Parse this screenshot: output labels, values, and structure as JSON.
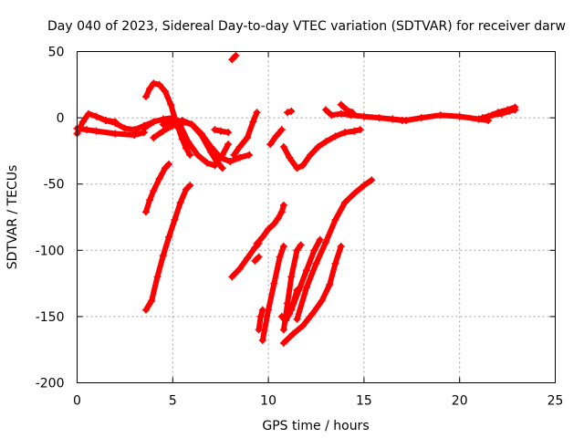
{
  "chart_data": {
    "type": "scatter",
    "title": "Day 040 of 2023, Sidereal Day-to-day VTEC variation (SDTVAR) for receiver darw",
    "xlabel": "GPS time / hours",
    "ylabel": "SDTVAR / TECUs",
    "xlim": [
      0,
      25
    ],
    "ylim": [
      -200,
      50
    ],
    "xticks": [
      "0",
      "5",
      "10",
      "15",
      "20",
      "25"
    ],
    "yticks": [
      "50",
      "0",
      "-50",
      "-100",
      "-150",
      "-200"
    ],
    "grid": true,
    "marker": "plus",
    "color": "#ff0000",
    "series": [
      {
        "points": [
          [
            0,
            -12
          ],
          [
            0.3,
            -3
          ],
          [
            0.6,
            3
          ],
          [
            1.0,
            1
          ],
          [
            1.5,
            -2
          ],
          [
            2.0,
            -3
          ]
        ]
      },
      {
        "points": [
          [
            0,
            -8
          ],
          [
            0.5,
            -9
          ],
          [
            1.0,
            -10
          ],
          [
            2.0,
            -12
          ],
          [
            3.0,
            -13
          ],
          [
            3.5,
            -11
          ]
        ]
      },
      {
        "points": [
          [
            1.5,
            -2
          ],
          [
            2.0,
            -4
          ],
          [
            2.5,
            -8
          ],
          [
            3.0,
            -9
          ],
          [
            3.5,
            -6
          ],
          [
            4.0,
            -3
          ]
        ]
      },
      {
        "points": [
          [
            3.6,
            -71
          ],
          [
            3.8,
            -62
          ],
          [
            4.0,
            -55
          ],
          [
            4.3,
            -46
          ],
          [
            4.6,
            -38
          ],
          [
            4.8,
            -35
          ]
        ]
      },
      {
        "points": [
          [
            3.6,
            -145
          ],
          [
            3.9,
            -138
          ],
          [
            4.2,
            -120
          ],
          [
            4.5,
            -104
          ],
          [
            4.8,
            -90
          ],
          [
            5.1,
            -77
          ],
          [
            5.4,
            -64
          ],
          [
            5.7,
            -54
          ],
          [
            5.9,
            -51
          ]
        ]
      },
      {
        "points": [
          [
            3.5,
            -8
          ],
          [
            4.0,
            -3
          ],
          [
            4.5,
            -1
          ],
          [
            5.0,
            0
          ],
          [
            5.4,
            -6
          ],
          [
            5.8,
            -18
          ],
          [
            6.3,
            -28
          ],
          [
            6.8,
            -34
          ],
          [
            7.2,
            -36
          ],
          [
            7.6,
            -28
          ],
          [
            7.9,
            -20
          ]
        ]
      },
      {
        "points": [
          [
            4.0,
            -15
          ],
          [
            4.5,
            -10
          ],
          [
            5.0,
            -6
          ],
          [
            5.5,
            -3
          ],
          [
            6.0,
            -5
          ],
          [
            6.5,
            -12
          ],
          [
            7.0,
            -22
          ],
          [
            7.5,
            -30
          ],
          [
            8.0,
            -33
          ],
          [
            8.5,
            -30
          ],
          [
            9.0,
            -28
          ]
        ]
      },
      {
        "points": [
          [
            3.6,
            16
          ],
          [
            3.8,
            22
          ],
          [
            4.0,
            26
          ],
          [
            4.3,
            25
          ],
          [
            4.6,
            20
          ],
          [
            4.9,
            10
          ],
          [
            5.1,
            0
          ],
          [
            5.3,
            -8
          ],
          [
            5.5,
            -16
          ],
          [
            5.7,
            -23
          ],
          [
            5.9,
            -28
          ]
        ]
      },
      {
        "points": [
          [
            4.5,
            -5
          ],
          [
            5.0,
            -3
          ],
          [
            5.5,
            -2
          ],
          [
            6.0,
            -5
          ],
          [
            6.5,
            -13
          ],
          [
            7.0,
            -26
          ],
          [
            7.3,
            -33
          ],
          [
            7.6,
            -38
          ]
        ]
      },
      {
        "points": [
          [
            7.2,
            -9
          ],
          [
            7.5,
            -10
          ],
          [
            7.9,
            -11
          ]
        ]
      },
      {
        "points": [
          [
            8.1,
            44
          ],
          [
            8.3,
            47
          ]
        ]
      },
      {
        "points": [
          [
            8.2,
            -28
          ],
          [
            8.5,
            -22
          ],
          [
            8.9,
            -15
          ],
          [
            9.2,
            -3
          ],
          [
            9.4,
            4
          ]
        ]
      },
      {
        "points": [
          [
            8.1,
            -120
          ],
          [
            8.5,
            -114
          ],
          [
            8.9,
            -106
          ],
          [
            9.3,
            -98
          ],
          [
            9.5,
            -95
          ]
        ]
      },
      {
        "points": [
          [
            9.3,
            -108
          ],
          [
            9.5,
            -105
          ]
        ]
      },
      {
        "points": [
          [
            9.5,
            -160
          ],
          [
            9.6,
            -150
          ],
          [
            9.7,
            -145
          ]
        ]
      },
      {
        "points": [
          [
            9.7,
            -168
          ],
          [
            10.0,
            -145
          ],
          [
            10.3,
            -125
          ],
          [
            10.6,
            -105
          ],
          [
            10.8,
            -97
          ]
        ]
      },
      {
        "points": [
          [
            9.4,
            -95
          ],
          [
            9.7,
            -90
          ],
          [
            10.0,
            -84
          ],
          [
            10.3,
            -80
          ],
          [
            10.5,
            -76
          ],
          [
            10.7,
            -71
          ],
          [
            10.8,
            -66
          ]
        ]
      },
      {
        "points": [
          [
            10.1,
            -20
          ],
          [
            10.4,
            -14
          ],
          [
            10.7,
            -9
          ]
        ]
      },
      {
        "points": [
          [
            11.0,
            4
          ],
          [
            11.2,
            5
          ]
        ]
      },
      {
        "points": [
          [
            10.8,
            -22
          ],
          [
            11.1,
            -30
          ],
          [
            11.5,
            -38
          ],
          [
            11.8,
            -36
          ],
          [
            12.2,
            -28
          ],
          [
            12.6,
            -22
          ],
          [
            13.0,
            -18
          ],
          [
            13.5,
            -14
          ],
          [
            14.0,
            -11
          ],
          [
            14.5,
            -10
          ],
          [
            14.8,
            -9
          ]
        ]
      },
      {
        "points": [
          [
            10.7,
            -150
          ],
          [
            10.9,
            -153
          ],
          [
            11.1,
            -148
          ],
          [
            11.3,
            -140
          ],
          [
            11.5,
            -130
          ]
        ]
      },
      {
        "points": [
          [
            10.8,
            -160
          ],
          [
            11.0,
            -140
          ],
          [
            11.2,
            -120
          ],
          [
            11.5,
            -100
          ],
          [
            11.7,
            -96
          ]
        ]
      },
      {
        "points": [
          [
            10.8,
            -170
          ],
          [
            11.3,
            -163
          ],
          [
            11.8,
            -157
          ],
          [
            12.3,
            -148
          ],
          [
            12.8,
            -138
          ],
          [
            13.2,
            -126
          ],
          [
            13.5,
            -110
          ],
          [
            13.8,
            -97
          ]
        ]
      },
      {
        "points": [
          [
            11.2,
            -145
          ],
          [
            11.6,
            -130
          ],
          [
            12.0,
            -115
          ],
          [
            12.4,
            -100
          ],
          [
            12.7,
            -92
          ]
        ]
      },
      {
        "points": [
          [
            11.5,
            -152
          ],
          [
            12.0,
            -128
          ],
          [
            12.5,
            -110
          ],
          [
            13.0,
            -94
          ],
          [
            13.5,
            -77
          ],
          [
            14.0,
            -64
          ],
          [
            14.5,
            -57
          ],
          [
            15.0,
            -51
          ],
          [
            15.4,
            -47
          ]
        ]
      },
      {
        "points": [
          [
            13.0,
            6
          ],
          [
            13.3,
            2
          ],
          [
            13.8,
            3
          ],
          [
            14.3,
            2
          ],
          [
            15.0,
            1
          ],
          [
            15.8,
            0
          ],
          [
            16.5,
            -1
          ],
          [
            17.0,
            -2
          ]
        ]
      },
      {
        "points": [
          [
            13.8,
            10
          ],
          [
            14.1,
            6
          ],
          [
            14.4,
            4
          ]
        ]
      },
      {
        "points": [
          [
            16.5,
            -1
          ],
          [
            17.2,
            -2
          ],
          [
            18.0,
            0
          ],
          [
            19.0,
            2
          ],
          [
            20.0,
            1
          ],
          [
            21.0,
            -1
          ],
          [
            21.5,
            -2
          ]
        ]
      },
      {
        "points": [
          [
            21.0,
            -1
          ],
          [
            21.5,
            1
          ],
          [
            22.0,
            4
          ],
          [
            22.5,
            6
          ],
          [
            22.9,
            8
          ]
        ]
      },
      {
        "points": [
          [
            21.2,
            0
          ],
          [
            21.7,
            2
          ],
          [
            22.2,
            3
          ],
          [
            22.6,
            5
          ],
          [
            22.9,
            6
          ]
        ]
      }
    ]
  }
}
